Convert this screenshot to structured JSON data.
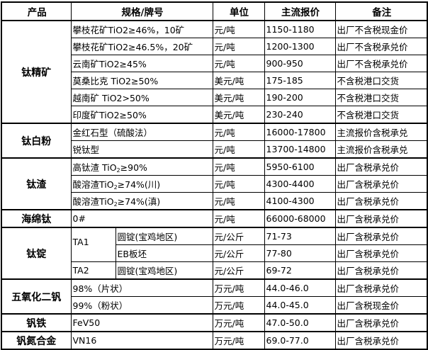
{
  "headers": {
    "product": "产品",
    "spec": "规格/牌号",
    "unit": "单位",
    "price": "主流报价",
    "note": "备注"
  },
  "groups": [
    {
      "product": "钛精矿",
      "rows": [
        {
          "spec": "攀枝花矿TiO2≥46%，10矿",
          "unit": "元/吨",
          "price": "1150-1180",
          "note": "出厂不含税现金价"
        },
        {
          "spec": "攀枝花矿TiO2≥46.5%，20矿",
          "unit": "元/吨",
          "price": "1200-1300",
          "note": "出厂不含税承兑价"
        },
        {
          "spec": "云南矿TiO2≥45%",
          "unit": "元/吨",
          "price": "900-950",
          "note": "出厂不含税承兑价"
        },
        {
          "spec": "莫桑比克 TiO2≥50%",
          "unit": "美元/吨",
          "price": "175-185",
          "note": "不含税港口交货"
        },
        {
          "spec": "越南矿 TiO2>50%",
          "unit": "美元/吨",
          "price": "190-200",
          "note": "不含税港口交货"
        },
        {
          "spec": "印度矿TiO2≥50%",
          "unit": "美元/吨",
          "price": "230-240",
          "note": "不含税港口交货"
        }
      ]
    },
    {
      "product": "钛白粉",
      "rows": [
        {
          "spec": "金红石型（硫酸法）",
          "unit": "元/吨",
          "price": "16000-17800",
          "note": "主流报价含税承兑"
        },
        {
          "spec": "锐钛型",
          "unit": "元/吨",
          "price": "13700-14800",
          "note": "主流报价含税承兑"
        }
      ]
    },
    {
      "product": "钛渣",
      "rows": [
        {
          "spec_pre": "高钛渣 TiO",
          "spec_sub": "2",
          "spec_post": "≥90%",
          "unit": "元/吨",
          "price": "5950-6100",
          "note": "出厂含税承兑价"
        },
        {
          "spec_pre": "酸溶渣TiO",
          "spec_sub": "2",
          "spec_post": "≥74%(川)",
          "unit": "元/吨",
          "price": "4300-4400",
          "note": "出厂含税承兑价"
        },
        {
          "spec_pre": "酸溶渣TiO",
          "spec_sub": "2",
          "spec_post": "≥74%(滇)",
          "unit": "元/吨",
          "price": "4100-4300",
          "note": "出厂含税承兑价"
        }
      ]
    },
    {
      "product": "海绵钛",
      "rows": [
        {
          "spec": "0#",
          "unit": "元/吨",
          "price": "66000-68000",
          "note": "出厂含税承兑价"
        }
      ]
    },
    {
      "product": "钛锭",
      "rows": [
        {
          "grade": "TA1",
          "spec": "圆锭(宝鸡地区)",
          "unit": "元/公斤",
          "price": "71-73",
          "note": "出厂含税承兑价"
        },
        {
          "spec": "EB板坯",
          "unit": "元/公斤",
          "price": "77-80",
          "note": "出厂含税承兑价"
        },
        {
          "grade": "TA2",
          "spec": "圆锭(宝鸡地区)",
          "unit": "元/公斤",
          "price": "69-72",
          "note": "出厂含税承兑价"
        }
      ]
    },
    {
      "product": "五氧化二钒",
      "rows": [
        {
          "spec": "98%（片状）",
          "unit": "万元/吨",
          "price": "44.0-46.0",
          "note": "出厂含税承兑价"
        },
        {
          "spec": "99%（粉状）",
          "unit": "万元/吨",
          "price": "44.0-45.0",
          "note": "出厂含税现金价"
        }
      ]
    },
    {
      "product": "钒铁",
      "rows": [
        {
          "spec": "FeV50",
          "unit": "万元/吨",
          "price": "47.0-50.0",
          "note": "出厂含税承兑价"
        }
      ]
    },
    {
      "product": "钒氮合金",
      "rows": [
        {
          "spec": "VN16",
          "unit": "万元/吨",
          "price": "69.0-77.0",
          "note": "出厂含税承兑价"
        }
      ]
    }
  ]
}
